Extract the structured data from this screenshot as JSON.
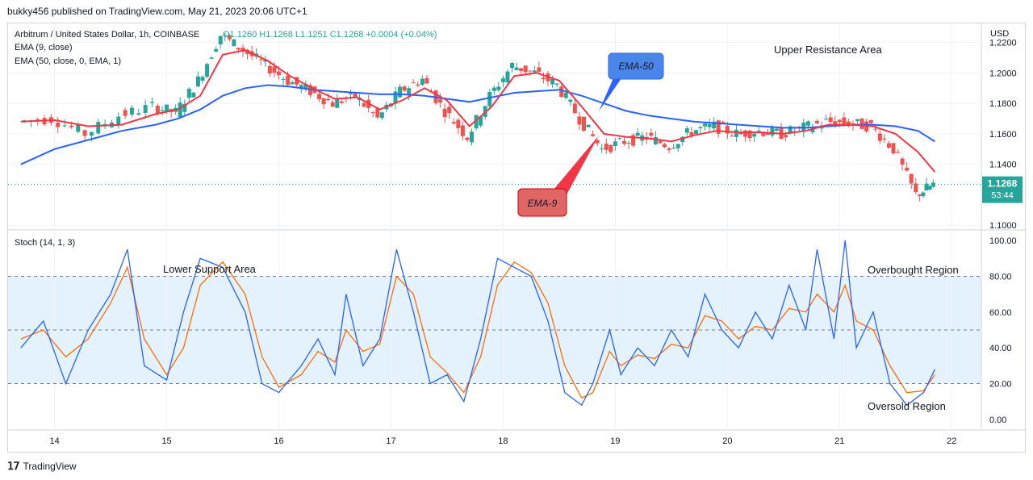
{
  "header": {
    "published_line": "bukky456 published on TradingView.com, May 21, 2023 20:06 UTC+1"
  },
  "legend": {
    "symbol": "Arbitrum / United States Dollar, 1h, COINBASE",
    "ohlc": "O1.1260  H1.1268  L1.1251  C1.1268  +0.0004 (+0.04%)",
    "ema9": "EMA (9, close)",
    "ema50": "EMA (50, close, 0, EMA, 1)",
    "stoch": "Stoch (14, 1, 3)"
  },
  "price_axis": {
    "currency": "USD",
    "ticks": [
      "1.2200",
      "1.2000",
      "1.1800",
      "1.1600",
      "1.1400",
      "1.1000"
    ],
    "last_price": "1.1268",
    "countdown": "53:44"
  },
  "stoch_axis": {
    "ticks": [
      "100.00",
      "80.00",
      "60.00",
      "40.00",
      "20.00",
      "0.00"
    ]
  },
  "time_axis": {
    "ticks": [
      "14",
      "15",
      "16",
      "17",
      "18",
      "19",
      "20",
      "21",
      "22"
    ]
  },
  "annotations": {
    "upper_resistance": "Upper Resistance Area",
    "lower_support": "Lower Support Area",
    "overbought": "Overbought Region",
    "oversold": "Oversold Region",
    "ema50_callout": "EMA-50",
    "ema9_callout": "EMA-9"
  },
  "footer": {
    "brand": "TradingView"
  },
  "colors": {
    "bull": "#26a69a",
    "bear": "#ef5350",
    "ema9": "#f23645",
    "ema50": "#2962ff",
    "stoch_k": "#2962ff",
    "stoch_d": "#ff6d00",
    "band": "#e3f2fd"
  },
  "chart_data": {
    "type": "candlestick",
    "price": {
      "x_days": [
        13.7,
        14.0,
        14.3,
        14.6,
        14.9,
        15.1,
        15.3,
        15.5,
        15.7,
        15.9,
        16.1,
        16.3,
        16.5,
        16.7,
        16.9,
        17.1,
        17.3,
        17.5,
        17.7,
        17.9,
        18.1,
        18.3,
        18.5,
        18.7,
        18.9,
        19.1,
        19.3,
        19.5,
        19.7,
        19.9,
        20.1,
        20.3,
        20.5,
        20.7,
        20.9,
        21.1,
        21.3,
        21.5,
        21.7,
        21.85
      ],
      "close": [
        1.168,
        1.17,
        1.16,
        1.172,
        1.178,
        1.174,
        1.195,
        1.225,
        1.215,
        1.205,
        1.195,
        1.188,
        1.18,
        1.185,
        1.17,
        1.188,
        1.196,
        1.175,
        1.158,
        1.185,
        1.205,
        1.2,
        1.192,
        1.17,
        1.15,
        1.155,
        1.158,
        1.152,
        1.162,
        1.165,
        1.16,
        1.162,
        1.16,
        1.164,
        1.168,
        1.167,
        1.165,
        1.15,
        1.12,
        1.1268
      ],
      "ema9": [
        1.168,
        1.169,
        1.165,
        1.166,
        1.173,
        1.176,
        1.185,
        1.212,
        1.215,
        1.208,
        1.198,
        1.19,
        1.183,
        1.184,
        1.176,
        1.182,
        1.19,
        1.182,
        1.165,
        1.178,
        1.198,
        1.2,
        1.195,
        1.178,
        1.16,
        1.158,
        1.157,
        1.155,
        1.159,
        1.162,
        1.161,
        1.161,
        1.16,
        1.162,
        1.166,
        1.166,
        1.165,
        1.16,
        1.148,
        1.135
      ],
      "ema50": [
        1.14,
        1.15,
        1.156,
        1.162,
        1.166,
        1.17,
        1.176,
        1.185,
        1.19,
        1.192,
        1.191,
        1.189,
        1.188,
        1.187,
        1.186,
        1.186,
        1.185,
        1.183,
        1.181,
        1.184,
        1.187,
        1.188,
        1.189,
        1.185,
        1.18,
        1.175,
        1.172,
        1.17,
        1.168,
        1.167,
        1.166,
        1.165,
        1.164,
        1.164,
        1.165,
        1.166,
        1.166,
        1.165,
        1.162,
        1.155
      ],
      "ylim": [
        1.098,
        1.232
      ]
    },
    "stoch": {
      "x_days": [
        13.7,
        13.9,
        14.1,
        14.3,
        14.5,
        14.65,
        14.8,
        15.0,
        15.15,
        15.3,
        15.5,
        15.7,
        15.85,
        16.0,
        16.2,
        16.35,
        16.5,
        16.6,
        16.75,
        16.9,
        17.05,
        17.2,
        17.35,
        17.5,
        17.65,
        17.8,
        17.95,
        18.1,
        18.25,
        18.4,
        18.55,
        18.7,
        18.8,
        18.95,
        19.05,
        19.2,
        19.35,
        19.5,
        19.65,
        19.8,
        19.95,
        20.1,
        20.25,
        20.4,
        20.55,
        20.7,
        20.8,
        20.95,
        21.05,
        21.15,
        21.3,
        21.45,
        21.6,
        21.75,
        21.85
      ],
      "k": [
        40,
        55,
        20,
        50,
        70,
        95,
        30,
        22,
        60,
        90,
        85,
        60,
        20,
        15,
        30,
        45,
        25,
        70,
        30,
        45,
        95,
        60,
        20,
        25,
        10,
        45,
        90,
        85,
        80,
        55,
        15,
        8,
        20,
        50,
        25,
        40,
        30,
        50,
        35,
        70,
        50,
        40,
        60,
        45,
        75,
        50,
        95,
        45,
        100,
        40,
        60,
        20,
        8,
        15,
        28
      ],
      "d": [
        45,
        50,
        35,
        45,
        65,
        85,
        45,
        25,
        40,
        75,
        88,
        70,
        35,
        18,
        25,
        38,
        32,
        50,
        38,
        42,
        80,
        70,
        35,
        26,
        15,
        35,
        75,
        88,
        82,
        65,
        30,
        12,
        15,
        38,
        30,
        36,
        34,
        42,
        40,
        58,
        55,
        45,
        52,
        50,
        62,
        60,
        70,
        60,
        75,
        55,
        50,
        30,
        15,
        16,
        25
      ],
      "ylim": [
        -5,
        105
      ],
      "bands": [
        20,
        50,
        80
      ]
    }
  }
}
